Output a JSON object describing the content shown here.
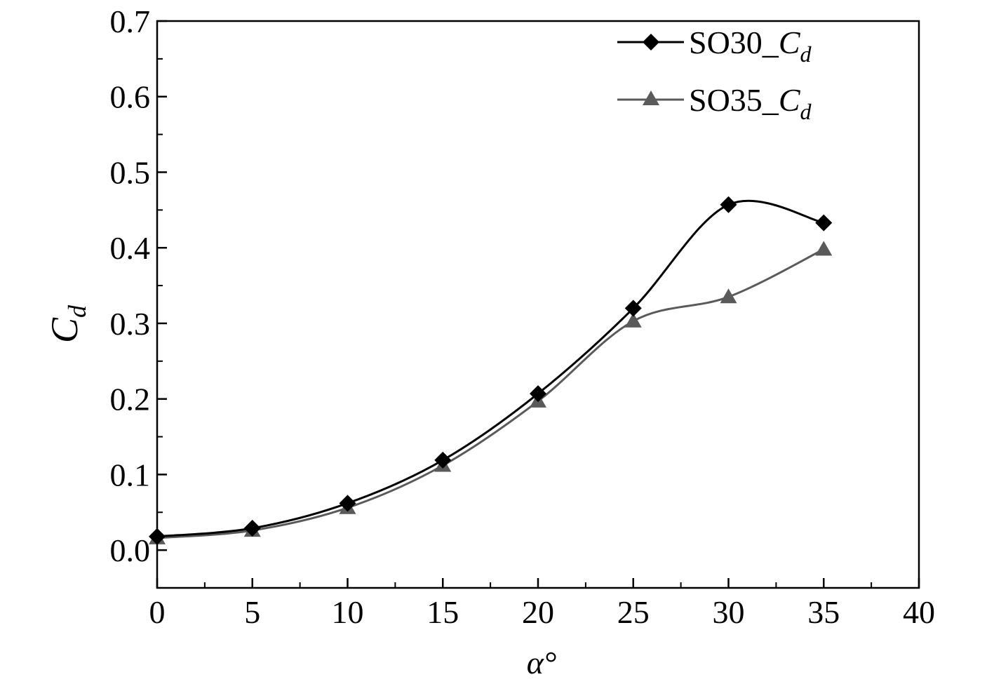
{
  "chart_data": {
    "type": "line",
    "xlabel": "α°",
    "ylabel": {
      "main": "C",
      "sub": "d"
    },
    "xlim": [
      0,
      40
    ],
    "ylim": [
      -0.05,
      0.7
    ],
    "x_ticks": [
      "0",
      "5",
      "10",
      "15",
      "20",
      "25",
      "30",
      "35",
      "40"
    ],
    "y_ticks": [
      "0.0",
      "0.1",
      "0.2",
      "0.3",
      "0.4",
      "0.5",
      "0.6",
      "0.7"
    ],
    "grid": false,
    "legend_position": "top-right",
    "x": [
      0,
      5,
      10,
      15,
      20,
      25,
      30,
      35
    ],
    "series": [
      {
        "name": "SO30_C_d",
        "legend_prefix": "SO30_",
        "legend_main": "C",
        "legend_sub": "d",
        "marker": "diamond",
        "color": "#000000",
        "values": [
          0.018,
          0.029,
          0.062,
          0.119,
          0.207,
          0.32,
          0.457,
          0.433
        ]
      },
      {
        "name": "SO35_C_d",
        "legend_prefix": "SO35_",
        "legend_main": "C",
        "legend_sub": "d",
        "marker": "triangle",
        "color": "#5a5a5a",
        "values": [
          0.016,
          0.026,
          0.056,
          0.112,
          0.197,
          0.303,
          0.335,
          0.398
        ]
      }
    ]
  }
}
